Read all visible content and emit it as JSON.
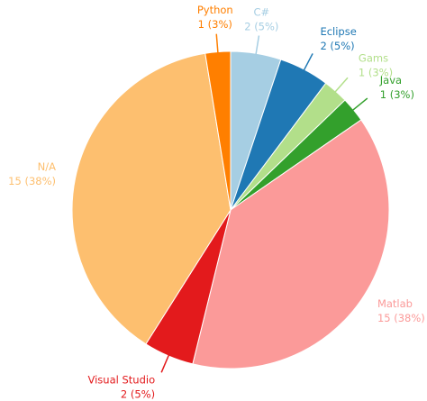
{
  "chart_data": {
    "type": "pie",
    "categories": [
      "C#",
      "Eclipse",
      "Gams",
      "Java",
      "Matlab",
      "Visual Studio",
      "N/A",
      "Python"
    ],
    "values": [
      2,
      2,
      1,
      1,
      15,
      2,
      15,
      1
    ],
    "value_labels": [
      "2 (5%)",
      "2 (5%)",
      "1 (3%)",
      "1 (3%)",
      "15 (38%)",
      "2 (5%)",
      "15 (38%)",
      "1 (3%)"
    ],
    "colors": [
      "#a6cee3",
      "#1f78b4",
      "#b2df8a",
      "#33a02c",
      "#fb9a99",
      "#e31a1c",
      "#fdbf6f",
      "#ff7f00"
    ]
  }
}
